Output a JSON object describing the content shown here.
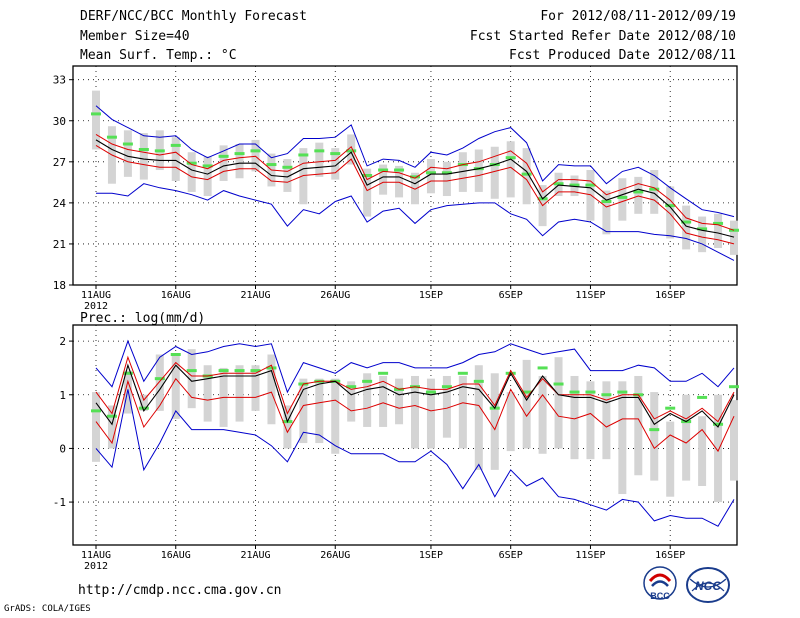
{
  "header": {
    "title": "DERF/NCC/BCC Monthly Forecast",
    "member_size": "Member Size=40",
    "variable": "Mean Surf. Temp.: °C",
    "period": "For 2012/08/11-2012/09/19",
    "started": "Fcst Started Refer Date 2012/08/10",
    "produced": "Fcst Produced Date 2012/08/11"
  },
  "footer": {
    "url": "http://cmdp.ncc.cma.gov.cn",
    "grads": "GrADS: COLA/IGES",
    "logo_bcc": "BCC",
    "logo_ncc": "NCC"
  },
  "colors": {
    "box": "#d4d4d4",
    "median": "#55e055",
    "max_min": "#0000cc",
    "spread": "#dd0000",
    "mean": "#000000",
    "grid": "#000000"
  },
  "chart_data": [
    {
      "type": "box",
      "title": "Mean Surf. Temp.: °C",
      "xlabel": "",
      "ylabel": "°C",
      "x_tick_labels": [
        "11AUG",
        "16AUG",
        "21AUG",
        "26AUG",
        "1SEP",
        "6SEP",
        "11SEP",
        "16SEP"
      ],
      "x_year_label": "2012",
      "ylim": [
        18,
        34
      ],
      "y_ticks": [
        18,
        21,
        24,
        27,
        30,
        33
      ],
      "series": {
        "box_top": [
          32.2,
          29.6,
          29.3,
          29.1,
          29.3,
          28.8,
          27.7,
          27.4,
          28.2,
          28.3,
          28.6,
          27.6,
          27.2,
          28.0,
          28.4,
          28.0,
          29.0,
          26.5,
          26.8,
          26.7,
          26.2,
          27.2,
          27.0,
          27.7,
          27.9,
          28.1,
          28.5,
          28.0,
          25.3,
          26.2,
          26.0,
          26.4,
          24.9,
          25.8,
          25.9,
          26.4,
          25.2,
          23.8,
          23.0,
          23.2,
          22.7
        ],
        "box_bottom": [
          27.9,
          25.4,
          25.9,
          25.7,
          26.4,
          25.6,
          24.8,
          24.5,
          25.6,
          25.8,
          26.3,
          25.2,
          24.8,
          23.9,
          25.9,
          25.7,
          26.8,
          23.0,
          24.6,
          24.4,
          23.9,
          24.7,
          24.5,
          24.8,
          24.8,
          24.3,
          24.4,
          23.9,
          22.3,
          24.5,
          24.5,
          22.7,
          21.7,
          22.7,
          23.2,
          23.2,
          21.4,
          20.6,
          20.4,
          20.7,
          20.2
        ],
        "median": [
          30.5,
          28.8,
          28.3,
          27.9,
          27.8,
          28.2,
          26.9,
          26.7,
          27.4,
          27.6,
          27.8,
          26.8,
          26.6,
          27.5,
          27.8,
          27.6,
          27.8,
          26.0,
          26.4,
          26.4,
          25.9,
          26.2,
          26.2,
          26.8,
          26.5,
          26.8,
          27.3,
          26.1,
          24.3,
          25.4,
          25.3,
          25.3,
          24.1,
          24.4,
          24.8,
          25.0,
          23.8,
          22.6,
          22.1,
          22.5,
          22.0
        ],
        "max": [
          31.1,
          30.1,
          29.5,
          28.9,
          28.8,
          28.9,
          27.9,
          27.3,
          27.8,
          28.3,
          28.3,
          27.3,
          27.6,
          28.7,
          28.7,
          28.8,
          29.7,
          26.7,
          27.2,
          27.1,
          26.6,
          27.7,
          27.5,
          28.0,
          28.7,
          29.2,
          29.5,
          28.4,
          25.6,
          26.8,
          26.7,
          26.7,
          25.4,
          26.3,
          26.6,
          26.0,
          25.1,
          24.3,
          23.5,
          23.3,
          23.0
        ],
        "spread_up": [
          29.0,
          28.3,
          27.9,
          27.7,
          27.5,
          27.7,
          26.8,
          26.5,
          27.1,
          27.3,
          27.4,
          26.4,
          26.3,
          26.9,
          27.0,
          27.1,
          28.1,
          25.7,
          26.3,
          26.2,
          25.8,
          26.6,
          26.5,
          26.8,
          27.0,
          27.4,
          27.8,
          26.9,
          24.8,
          25.7,
          25.7,
          25.6,
          24.6,
          25.0,
          25.4,
          25.1,
          24.2,
          22.9,
          22.5,
          22.4,
          22.0
        ],
        "mean": [
          28.6,
          27.9,
          27.4,
          27.2,
          27.1,
          27.1,
          26.4,
          26.1,
          26.7,
          26.9,
          26.9,
          26.0,
          25.9,
          26.5,
          26.6,
          26.7,
          27.7,
          25.3,
          25.9,
          25.9,
          25.4,
          26.1,
          26.1,
          26.3,
          26.5,
          26.8,
          27.2,
          26.3,
          24.3,
          25.3,
          25.2,
          25.1,
          24.2,
          24.6,
          25.0,
          24.7,
          23.7,
          22.3,
          22.0,
          21.8,
          21.5
        ],
        "spread_dn": [
          28.2,
          27.5,
          27.0,
          26.8,
          26.6,
          26.6,
          25.9,
          25.7,
          26.3,
          26.5,
          26.5,
          25.6,
          25.5,
          26.0,
          26.1,
          26.2,
          27.2,
          24.9,
          25.5,
          25.5,
          25.0,
          25.6,
          25.6,
          25.8,
          26.0,
          26.3,
          26.6,
          25.7,
          23.8,
          24.8,
          24.8,
          24.6,
          23.7,
          24.1,
          24.5,
          24.2,
          23.2,
          21.8,
          21.5,
          21.3,
          21.0
        ],
        "min": [
          24.7,
          24.7,
          24.5,
          25.4,
          25.1,
          24.9,
          24.6,
          24.2,
          24.9,
          24.5,
          24.2,
          23.9,
          22.3,
          23.5,
          23.2,
          24.1,
          24.5,
          22.6,
          23.4,
          23.6,
          22.5,
          23.5,
          23.8,
          23.9,
          24.0,
          24.0,
          23.2,
          22.8,
          21.6,
          22.6,
          22.8,
          22.6,
          21.9,
          21.9,
          21.9,
          21.7,
          21.6,
          21.4,
          21.0,
          20.4,
          19.8
        ]
      }
    },
    {
      "type": "box",
      "title": "Prec.: log(mm/d)",
      "xlabel": "",
      "ylabel": "log(mm/d)",
      "x_tick_labels": [
        "11AUG",
        "16AUG",
        "21AUG",
        "26AUG",
        "1SEP",
        "6SEP",
        "11SEP",
        "16SEP"
      ],
      "x_year_label": "2012",
      "ylim": [
        -1.8,
        2.3
      ],
      "y_ticks": [
        -1,
        0,
        1,
        2
      ],
      "series": {
        "box_top": [
          1.05,
          0.8,
          1.45,
          1.0,
          1.75,
          1.75,
          1.85,
          1.55,
          1.5,
          1.55,
          1.55,
          1.75,
          0.8,
          1.3,
          1.3,
          1.3,
          1.25,
          1.4,
          1.35,
          1.3,
          1.35,
          1.3,
          1.35,
          1.35,
          1.55,
          1.4,
          1.05,
          1.65,
          1.35,
          1.7,
          1.35,
          1.25,
          1.25,
          1.25,
          1.35,
          1.05,
          0.5,
          1.0,
          0.6,
          1.0,
          0.9
        ],
        "box_bottom": [
          -0.25,
          0.0,
          0.65,
          0.7,
          0.7,
          0.55,
          0.75,
          0.5,
          0.4,
          0.5,
          0.7,
          0.45,
          0.0,
          0.1,
          0.1,
          -0.1,
          0.5,
          0.4,
          0.4,
          0.45,
          0.0,
          0.0,
          0.2,
          0.0,
          -0.4,
          -0.4,
          -0.05,
          0.0,
          -0.1,
          0.0,
          -0.2,
          -0.2,
          -0.2,
          -0.85,
          -0.5,
          -0.6,
          -0.9,
          -0.6,
          -0.7,
          -1.0,
          -0.6
        ],
        "median": [
          0.7,
          0.6,
          1.4,
          0.75,
          1.3,
          1.75,
          1.45,
          1.35,
          1.45,
          1.45,
          1.45,
          1.5,
          0.5,
          1.2,
          1.25,
          1.25,
          1.15,
          1.25,
          1.4,
          1.1,
          1.15,
          1.05,
          1.15,
          1.4,
          1.25,
          0.75,
          1.4,
          1.05,
          1.5,
          1.2,
          1.05,
          1.05,
          1.0,
          1.05,
          1.0,
          0.35,
          0.75,
          0.5,
          0.95,
          0.45,
          1.15
        ],
        "max": [
          1.5,
          1.15,
          2.0,
          1.25,
          1.7,
          1.9,
          1.75,
          1.8,
          1.9,
          1.95,
          1.9,
          1.95,
          1.05,
          1.6,
          1.5,
          1.4,
          1.6,
          1.5,
          1.6,
          1.6,
          1.5,
          1.5,
          1.5,
          1.6,
          1.75,
          1.8,
          1.95,
          1.85,
          1.75,
          1.8,
          1.85,
          1.45,
          1.45,
          1.45,
          1.55,
          1.5,
          1.25,
          1.25,
          1.4,
          1.15,
          1.5
        ],
        "spread_up": [
          1.05,
          0.65,
          1.7,
          0.9,
          1.25,
          1.6,
          1.35,
          1.35,
          1.4,
          1.4,
          1.4,
          1.55,
          0.65,
          1.2,
          1.25,
          1.25,
          1.1,
          1.15,
          1.25,
          1.1,
          1.15,
          1.1,
          1.1,
          1.2,
          1.2,
          0.8,
          1.45,
          0.95,
          1.3,
          1.0,
          1.0,
          1.0,
          0.9,
          1.0,
          1.0,
          0.55,
          0.7,
          0.55,
          0.75,
          0.5,
          1.05
        ],
        "mean": [
          0.85,
          0.45,
          1.55,
          0.7,
          1.1,
          1.55,
          1.25,
          1.3,
          1.35,
          1.35,
          1.35,
          1.45,
          0.5,
          1.1,
          1.2,
          1.25,
          1.0,
          1.1,
          1.15,
          1.0,
          1.05,
          1.0,
          1.05,
          1.15,
          1.1,
          0.75,
          1.4,
          0.9,
          1.35,
          1.0,
          0.95,
          0.95,
          0.85,
          0.95,
          0.95,
          0.45,
          0.65,
          0.5,
          0.7,
          0.4,
          1.0
        ],
        "spread_dn": [
          0.5,
          0.1,
          1.25,
          0.4,
          0.8,
          1.3,
          0.95,
          0.9,
          0.95,
          0.95,
          0.95,
          1.05,
          0.3,
          0.8,
          0.85,
          0.9,
          0.7,
          0.75,
          0.85,
          0.75,
          0.8,
          0.7,
          0.75,
          0.85,
          0.8,
          0.35,
          1.1,
          0.6,
          1.0,
          0.6,
          0.55,
          0.65,
          0.4,
          0.55,
          0.55,
          0.0,
          0.25,
          0.1,
          0.35,
          -0.05,
          0.6
        ],
        "min": [
          0.0,
          -0.35,
          1.1,
          -0.4,
          0.1,
          0.7,
          0.35,
          0.35,
          0.35,
          0.3,
          0.25,
          0.05,
          -0.25,
          0.3,
          0.25,
          0.05,
          -0.1,
          -0.1,
          -0.1,
          -0.25,
          -0.25,
          -0.05,
          -0.3,
          -0.75,
          -0.3,
          -0.9,
          -0.4,
          -0.7,
          -0.55,
          -0.9,
          -0.95,
          -1.05,
          -1.15,
          -0.95,
          -1.0,
          -1.35,
          -1.25,
          -1.3,
          -1.3,
          -1.45,
          -0.95
        ]
      }
    }
  ]
}
